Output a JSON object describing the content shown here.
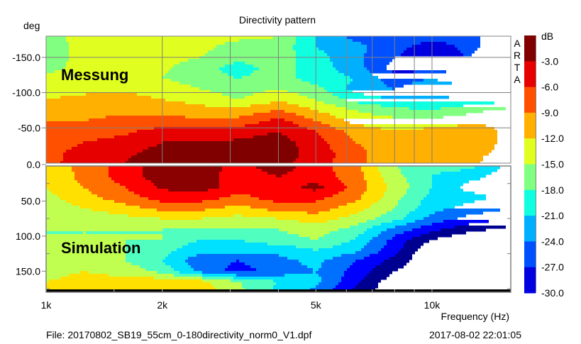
{
  "chart_data": {
    "type": "heatmap",
    "title": "Directivity pattern",
    "ylabel": "deg",
    "xlabel": "Frequency (Hz)",
    "colorbar_label": "dB",
    "watermark": "ARTA",
    "x_scale": "log",
    "xlim": [
      1000,
      16000
    ],
    "x_ticks": [
      {
        "value": 1000,
        "label": "1k"
      },
      {
        "value": 2000,
        "label": "2k"
      },
      {
        "value": 5000,
        "label": "5k"
      },
      {
        "value": 10000,
        "label": "10k"
      }
    ],
    "x_gridlines": [
      2000,
      3000,
      4000,
      5000,
      6000,
      7000,
      8000,
      9000,
      10000
    ],
    "y_ticks": [
      {
        "value": -150,
        "label": "-150.0"
      },
      {
        "value": -100,
        "label": "-100.0"
      },
      {
        "value": -50,
        "label": "-50.0"
      },
      {
        "value": 0,
        "label": "0.0"
      },
      {
        "value": 50,
        "label": "50.0"
      },
      {
        "value": 100,
        "label": "100.0"
      },
      {
        "value": 150,
        "label": "150.0"
      }
    ],
    "colorbar_ticks": [
      "-3.0",
      "-6.0",
      "-9.0",
      "-12.0",
      "-15.0",
      "-18.0",
      "-21.0",
      "-24.0",
      "-27.0",
      "-30.0"
    ],
    "levels": [
      -3,
      -6,
      -9,
      -12,
      -15,
      -18,
      -21,
      -24,
      -27,
      -30
    ],
    "frequencies": [
      1000,
      1250,
      1600,
      2000,
      2500,
      3150,
      4000,
      5000,
      6300,
      8000,
      10000,
      12500,
      16000
    ],
    "panels": [
      {
        "name": "Messung",
        "angles": [
          -180,
          -165,
          -150,
          -135,
          -120,
          -105,
          -90,
          -75,
          -60,
          -45,
          -30,
          -15,
          0
        ],
        "palette": [
          "#800000",
          "#e60000",
          "#ff5000",
          "#ffb000",
          "#e0ff20",
          "#80ff80",
          "#10ffe0",
          "#00b0ff",
          "#0050ff",
          "#0000e0",
          "#000080",
          "#000080"
        ],
        "values_db": [
          [
            -16,
            -14,
            -14,
            -13.5,
            -13.5,
            -14,
            -15,
            -21,
            -25,
            -25,
            -26,
            -26,
            -30
          ],
          [
            -16.5,
            -14,
            -14,
            -14,
            -14,
            -16.5,
            -16,
            -21,
            -23,
            -26,
            -28.5,
            -26,
            -30
          ],
          [
            -16.5,
            -14,
            -14,
            -14,
            -15,
            -17,
            -16,
            -20,
            -23,
            -27,
            -28.5,
            -27,
            -30
          ],
          [
            -16,
            -14,
            -15,
            -14.5,
            -16.5,
            -19.5,
            -16.5,
            -19.5,
            -22.5,
            -28.5,
            -28,
            -28.5,
            -28.5
          ],
          [
            -14,
            -14,
            -13.5,
            -15,
            -16.5,
            -18,
            -16.5,
            -19.5,
            -21,
            -25.5,
            -24,
            -26,
            -25.5
          ],
          [
            -13.5,
            -13,
            -12.5,
            -13,
            -15,
            -16.5,
            -15,
            -17,
            -22,
            -24,
            -22,
            -23,
            -23
          ],
          [
            -12,
            -11,
            -11,
            -12,
            -13,
            -15,
            -12.5,
            -15,
            -19,
            -21,
            -21,
            -20,
            -19
          ],
          [
            -10.5,
            -10,
            -10,
            -10,
            -11,
            -11,
            -9,
            -12,
            -15,
            -17,
            -18,
            -16,
            -14
          ],
          [
            -9,
            -9,
            -8,
            -7.5,
            -8.5,
            -8,
            -5,
            -9,
            -13,
            -14,
            -14,
            -13,
            -12
          ],
          [
            -8,
            -7.5,
            -6.5,
            -5,
            -5,
            -4.5,
            -3,
            -6,
            -10,
            -12,
            -11,
            -10,
            -13
          ],
          [
            -7.5,
            -6,
            -5,
            -3,
            -3,
            -2.5,
            -1.5,
            -5,
            -9,
            -11,
            -12,
            -10,
            -13
          ],
          [
            -7,
            -5,
            -3.5,
            -2,
            -1.5,
            -2.5,
            -1.5,
            -4,
            -8,
            -11,
            -12,
            -11,
            -13
          ],
          [
            -7,
            -4.5,
            -3,
            -1.5,
            -1.5,
            -2,
            -2,
            -4.5,
            -8,
            -11,
            -12,
            -11,
            -15
          ]
        ]
      },
      {
        "name": "Simulation",
        "angles": [
          0,
          15,
          30,
          45,
          60,
          75,
          90,
          105,
          120,
          135,
          150,
          165,
          180
        ],
        "palette": [
          "#8b0000",
          "#ff0000",
          "#ff7000",
          "#ffe000",
          "#c0ff50",
          "#50ffc0",
          "#00e0ff",
          "#0070ff",
          "#0000ff",
          "#000090",
          "#000000",
          "#000000"
        ],
        "values_db": [
          [
            -11,
            -8,
            -4.5,
            -1.5,
            -1.5,
            -4,
            -1.5,
            -4.5,
            -8,
            -15,
            -17,
            -17,
            -22
          ],
          [
            -12,
            -8,
            -4.5,
            -1.5,
            -1.5,
            -4.5,
            -3,
            -4.5,
            -7.5,
            -14,
            -18,
            -20,
            -23
          ],
          [
            -12,
            -9,
            -6,
            -2.5,
            -1.5,
            -4.5,
            -4.5,
            -2,
            -7,
            -13,
            -18,
            -22,
            -22
          ],
          [
            -13,
            -10,
            -7.5,
            -4.5,
            -4.5,
            -7,
            -4.5,
            -5,
            -8,
            -14,
            -19,
            -20,
            -22
          ],
          [
            -14,
            -12,
            -10,
            -8,
            -8,
            -10,
            -7.5,
            -7.5,
            -10.5,
            -15,
            -20,
            -22,
            -24
          ],
          [
            -15,
            -14,
            -13,
            -12,
            -12,
            -13,
            -12,
            -10.5,
            -13,
            -17,
            -22,
            -25,
            -27
          ],
          [
            -15,
            -15,
            -15,
            -15,
            -15,
            -15,
            -15,
            -13.5,
            -16,
            -22,
            -26,
            -29,
            -31
          ],
          [
            -15,
            -15,
            -15,
            -15,
            -18,
            -18,
            -16,
            -15,
            -18,
            -25,
            -30,
            -33,
            -33
          ],
          [
            -15,
            -15,
            -15,
            -17,
            -20,
            -20,
            -20,
            -18,
            -20,
            -26,
            -33,
            -33,
            -33
          ],
          [
            -14,
            -14,
            -15,
            -18,
            -23,
            -24,
            -22,
            -20,
            -24,
            -28,
            -33,
            -33,
            -33
          ],
          [
            -13,
            -12,
            -13,
            -16,
            -22,
            -25,
            -23,
            -21,
            -25,
            -30,
            -33,
            -33,
            -33
          ],
          [
            -12,
            -11,
            -11,
            -10,
            -11,
            -15,
            -18,
            -20,
            -26,
            -32,
            -33,
            -33,
            -33
          ],
          [
            -12,
            -11,
            -10,
            -9,
            -10,
            -14,
            -19,
            -22,
            -28,
            -33,
            -33,
            -33,
            -33
          ]
        ]
      }
    ],
    "colorbar_colors": [
      "#800000",
      "#e60000",
      "#ff5000",
      "#ffb000",
      "#e0ff20",
      "#80ff80",
      "#10ffe0",
      "#00b0ff",
      "#0050ff",
      "#0000e0"
    ]
  },
  "labels": {
    "measurement": "Messung",
    "simulation": "Simulation"
  },
  "footer": {
    "file": "File: 20170802_SB19_55cm_0-180directivity_norm0_V1.dpf",
    "datetime": "2017-08-02  22:01:05"
  }
}
